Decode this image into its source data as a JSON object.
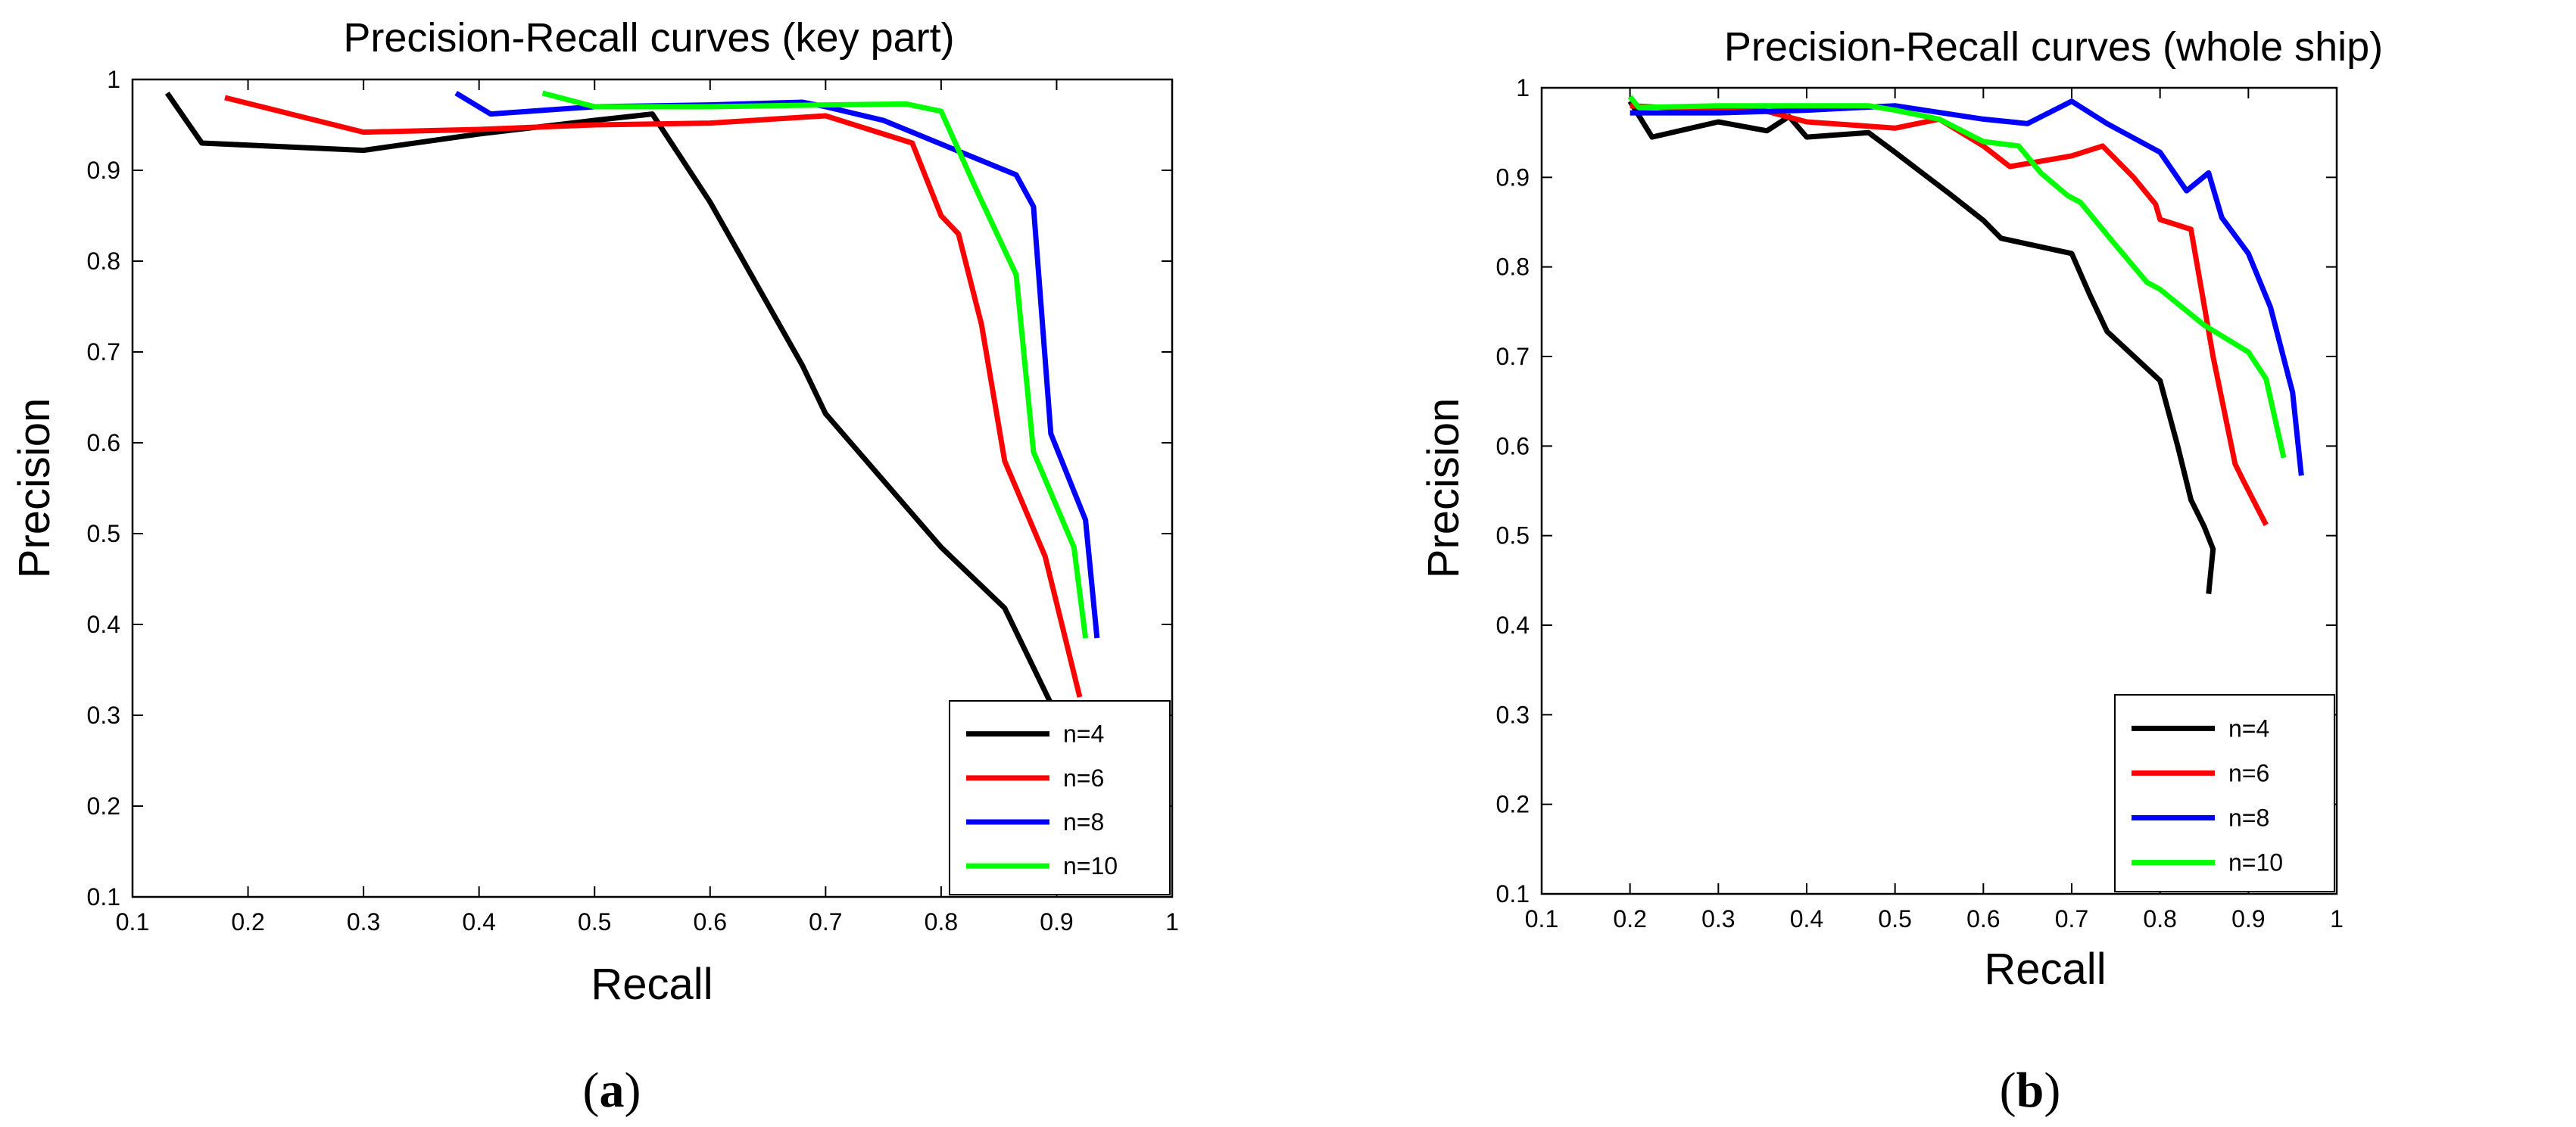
{
  "chart_data": [
    {
      "type": "line",
      "caption": "(a)",
      "caption_letter": "a",
      "title": "Precision-Recall curves (key part)",
      "xlabel": "Recall",
      "ylabel": "Precision",
      "xlim": [
        0.1,
        1
      ],
      "ylim": [
        0.1,
        1
      ],
      "xticks": [
        0.1,
        0.2,
        0.3,
        0.4,
        0.5,
        0.6,
        0.7,
        0.8,
        0.9,
        1
      ],
      "xtick_labels": [
        "0.1",
        "0.2",
        "0.3",
        "0.4",
        "0.5",
        "0.6",
        "0.7",
        "0.8",
        "0.9",
        "1"
      ],
      "yticks": [
        0.1,
        0.2,
        0.3,
        0.4,
        0.5,
        0.6,
        0.7,
        0.8,
        0.9,
        1
      ],
      "ytick_labels": [
        "0.1",
        "0.2",
        "0.3",
        "0.4",
        "0.5",
        "0.6",
        "0.7",
        "0.8",
        "0.9",
        "1"
      ],
      "grid": false,
      "legend_position": "bottom-right",
      "series": [
        {
          "name": "n=4",
          "color": "#000000",
          "points": [
            [
              0.13,
              0.985
            ],
            [
              0.16,
              0.93
            ],
            [
              0.3,
              0.922
            ],
            [
              0.4,
              0.94
            ],
            [
              0.5,
              0.955
            ],
            [
              0.55,
              0.962
            ],
            [
              0.6,
              0.865
            ],
            [
              0.68,
              0.685
            ],
            [
              0.7,
              0.632
            ],
            [
              0.8,
              0.485
            ],
            [
              0.855,
              0.418
            ],
            [
              0.9,
              0.3
            ]
          ]
        },
        {
          "name": "n=6",
          "color": "#ff0000",
          "points": [
            [
              0.18,
              0.98
            ],
            [
              0.3,
              0.942
            ],
            [
              0.4,
              0.945
            ],
            [
              0.5,
              0.95
            ],
            [
              0.6,
              0.952
            ],
            [
              0.7,
              0.96
            ],
            [
              0.775,
              0.93
            ],
            [
              0.8,
              0.85
            ],
            [
              0.815,
              0.83
            ],
            [
              0.835,
              0.73
            ],
            [
              0.855,
              0.58
            ],
            [
              0.89,
              0.475
            ],
            [
              0.92,
              0.32
            ]
          ]
        },
        {
          "name": "n=8",
          "color": "#0000ff",
          "points": [
            [
              0.38,
              0.985
            ],
            [
              0.41,
              0.962
            ],
            [
              0.5,
              0.97
            ],
            [
              0.6,
              0.972
            ],
            [
              0.68,
              0.975
            ],
            [
              0.7,
              0.97
            ],
            [
              0.75,
              0.955
            ],
            [
              0.865,
              0.895
            ],
            [
              0.88,
              0.86
            ],
            [
              0.895,
              0.61
            ],
            [
              0.925,
              0.515
            ],
            [
              0.935,
              0.385
            ]
          ]
        },
        {
          "name": "n=10",
          "color": "#00ff00",
          "points": [
            [
              0.455,
              0.985
            ],
            [
              0.5,
              0.97
            ],
            [
              0.6,
              0.97
            ],
            [
              0.7,
              0.972
            ],
            [
              0.77,
              0.973
            ],
            [
              0.8,
              0.965
            ],
            [
              0.83,
              0.88
            ],
            [
              0.865,
              0.785
            ],
            [
              0.88,
              0.59
            ],
            [
              0.915,
              0.485
            ],
            [
              0.925,
              0.385
            ]
          ]
        }
      ]
    },
    {
      "type": "line",
      "caption": "(b)",
      "caption_letter": "b",
      "title": "Precision-Recall curves (whole ship)",
      "xlabel": "Recall",
      "ylabel": "Precision",
      "xlim": [
        0.1,
        1
      ],
      "ylim": [
        0.1,
        1
      ],
      "xticks": [
        0.1,
        0.2,
        0.3,
        0.4,
        0.5,
        0.6,
        0.7,
        0.8,
        0.9,
        1
      ],
      "xtick_labels": [
        "0.1",
        "0.2",
        "0.3",
        "0.4",
        "0.5",
        "0.6",
        "0.7",
        "0.8",
        "0.9",
        "1"
      ],
      "yticks": [
        0.1,
        0.2,
        0.3,
        0.4,
        0.5,
        0.6,
        0.7,
        0.8,
        0.9,
        1
      ],
      "ytick_labels": [
        "0.1",
        "0.2",
        "0.3",
        "0.4",
        "0.5",
        "0.6",
        "0.7",
        "0.8",
        "0.9",
        "1"
      ],
      "grid": false,
      "legend_position": "bottom-right",
      "series": [
        {
          "name": "n=4",
          "color": "#000000",
          "points": [
            [
              0.2,
              0.985
            ],
            [
              0.225,
              0.945
            ],
            [
              0.3,
              0.962
            ],
            [
              0.355,
              0.952
            ],
            [
              0.38,
              0.968
            ],
            [
              0.4,
              0.945
            ],
            [
              0.47,
              0.95
            ],
            [
              0.5,
              0.928
            ],
            [
              0.56,
              0.883
            ],
            [
              0.6,
              0.852
            ],
            [
              0.62,
              0.832
            ],
            [
              0.7,
              0.815
            ],
            [
              0.72,
              0.77
            ],
            [
              0.74,
              0.728
            ],
            [
              0.8,
              0.673
            ],
            [
              0.82,
              0.6
            ],
            [
              0.835,
              0.54
            ],
            [
              0.85,
              0.51
            ],
            [
              0.86,
              0.485
            ],
            [
              0.855,
              0.435
            ]
          ]
        },
        {
          "name": "n=6",
          "color": "#ff0000",
          "points": [
            [
              0.2,
              0.98
            ],
            [
              0.3,
              0.975
            ],
            [
              0.35,
              0.975
            ],
            [
              0.4,
              0.962
            ],
            [
              0.5,
              0.955
            ],
            [
              0.55,
              0.965
            ],
            [
              0.6,
              0.935
            ],
            [
              0.63,
              0.912
            ],
            [
              0.7,
              0.924
            ],
            [
              0.735,
              0.935
            ],
            [
              0.77,
              0.9
            ],
            [
              0.795,
              0.87
            ],
            [
              0.8,
              0.853
            ],
            [
              0.835,
              0.842
            ],
            [
              0.86,
              0.7
            ],
            [
              0.885,
              0.58
            ],
            [
              0.895,
              0.56
            ],
            [
              0.92,
              0.512
            ]
          ]
        },
        {
          "name": "n=8",
          "color": "#0000ff",
          "points": [
            [
              0.2,
              0.972
            ],
            [
              0.3,
              0.972
            ],
            [
              0.4,
              0.975
            ],
            [
              0.5,
              0.98
            ],
            [
              0.6,
              0.965
            ],
            [
              0.65,
              0.96
            ],
            [
              0.7,
              0.985
            ],
            [
              0.74,
              0.96
            ],
            [
              0.8,
              0.928
            ],
            [
              0.83,
              0.885
            ],
            [
              0.855,
              0.905
            ],
            [
              0.87,
              0.855
            ],
            [
              0.9,
              0.815
            ],
            [
              0.925,
              0.755
            ],
            [
              0.95,
              0.66
            ],
            [
              0.96,
              0.567
            ]
          ]
        },
        {
          "name": "n=10",
          "color": "#00ff00",
          "points": [
            [
              0.2,
              0.99
            ],
            [
              0.21,
              0.978
            ],
            [
              0.3,
              0.98
            ],
            [
              0.4,
              0.98
            ],
            [
              0.47,
              0.98
            ],
            [
              0.5,
              0.975
            ],
            [
              0.55,
              0.965
            ],
            [
              0.6,
              0.94
            ],
            [
              0.64,
              0.935
            ],
            [
              0.665,
              0.905
            ],
            [
              0.695,
              0.88
            ],
            [
              0.71,
              0.872
            ],
            [
              0.745,
              0.83
            ],
            [
              0.785,
              0.783
            ],
            [
              0.8,
              0.775
            ],
            [
              0.85,
              0.735
            ],
            [
              0.9,
              0.705
            ],
            [
              0.92,
              0.675
            ],
            [
              0.94,
              0.587
            ]
          ]
        }
      ]
    }
  ]
}
